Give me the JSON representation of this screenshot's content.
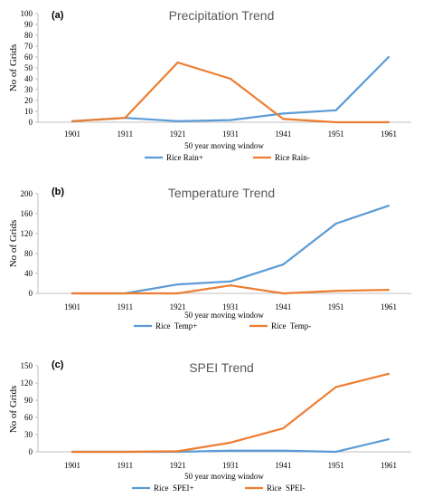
{
  "chart_data": [
    {
      "type": "line",
      "panel_label": "(a)",
      "title": "Precipitation Trend",
      "xlabel": "50 year moving window",
      "ylabel": "No of Grids",
      "categories": [
        "1901",
        "1911",
        "1921",
        "1931",
        "1941",
        "1951",
        "1961"
      ],
      "ylim": [
        0,
        100
      ],
      "yticks": [
        "0",
        "10",
        "20",
        "30",
        "40",
        "50",
        "60",
        "70",
        "80",
        "90",
        "100"
      ],
      "grid": false,
      "legend_position": "bottom",
      "series": [
        {
          "name": "Rice Rain+",
          "color": "#5b9bd5",
          "values": [
            1,
            4,
            1,
            2,
            8,
            11,
            60
          ]
        },
        {
          "name": "Rice Rain-",
          "color": "#ed7d31",
          "values": [
            1,
            4,
            55,
            40,
            3,
            0,
            0
          ]
        }
      ]
    },
    {
      "type": "line",
      "panel_label": "(b)",
      "title": "Temperature Trend",
      "xlabel": "50 year moving window",
      "ylabel": "No of Grids",
      "categories": [
        "1901",
        "1911",
        "1921",
        "1931",
        "1941",
        "1951",
        "1961"
      ],
      "ylim": [
        0,
        200
      ],
      "yticks": [
        "0",
        "40",
        "80",
        "120",
        "160",
        "200"
      ],
      "grid": false,
      "legend_position": "bottom",
      "series": [
        {
          "name": "Rice  Temp+",
          "color": "#5b9bd5",
          "values": [
            0,
            0,
            18,
            24,
            58,
            140,
            176
          ]
        },
        {
          "name": "Rice  Temp-",
          "color": "#ed7d31",
          "values": [
            0,
            0,
            0,
            16,
            0,
            5,
            7
          ]
        }
      ]
    },
    {
      "type": "line",
      "panel_label": "(c)",
      "title": "SPEI Trend",
      "xlabel": "50 year moving window",
      "ylabel": "No of Grids",
      "categories": [
        "1901",
        "1911",
        "1921",
        "1931",
        "1941",
        "1951",
        "1961"
      ],
      "ylim": [
        0,
        150
      ],
      "yticks": [
        "0",
        "30",
        "60",
        "90",
        "120",
        "150"
      ],
      "grid": false,
      "legend_position": "bottom",
      "series": [
        {
          "name": "Rice  SPEI+",
          "color": "#5b9bd5",
          "values": [
            0,
            0,
            0,
            2,
            2,
            0,
            22
          ]
        },
        {
          "name": "Rice  SPEI-",
          "color": "#ed7d31",
          "values": [
            0,
            0,
            1,
            16,
            41,
            113,
            136
          ]
        }
      ]
    }
  ]
}
